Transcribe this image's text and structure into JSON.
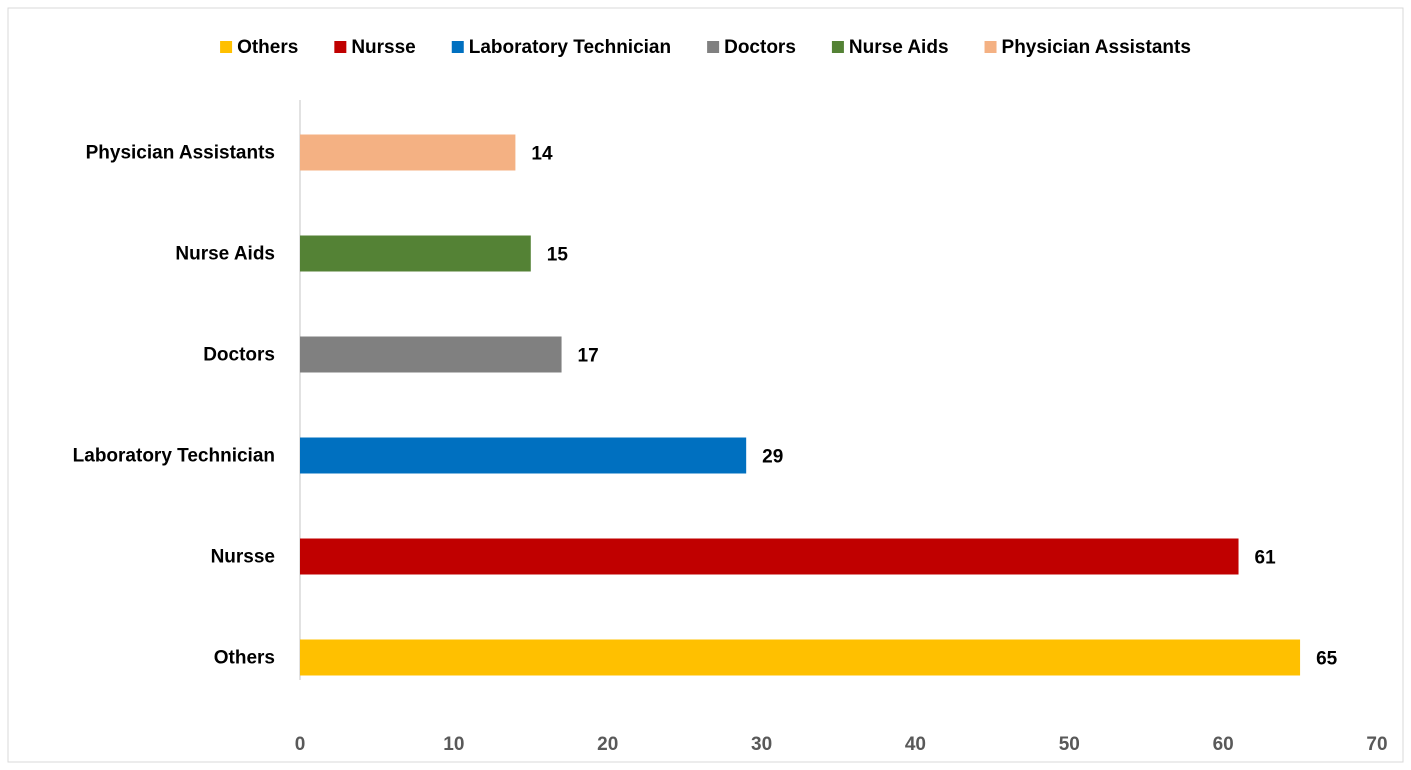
{
  "chart_data": {
    "type": "bar",
    "orientation": "horizontal",
    "categories": [
      "Others",
      "Nursse",
      "Laboratory Technician",
      "Doctors",
      "Nurse Aids",
      "Physician Assistants"
    ],
    "values": [
      65,
      61,
      29,
      17,
      15,
      14
    ],
    "colors": [
      "#ffc000",
      "#c00000",
      "#0070c0",
      "#808080",
      "#548235",
      "#f4b183"
    ],
    "xlim": [
      0,
      70
    ],
    "xticks": [
      0,
      10,
      20,
      30,
      40,
      50,
      60,
      70
    ],
    "legend": "top",
    "grid": false,
    "data_labels": true
  }
}
